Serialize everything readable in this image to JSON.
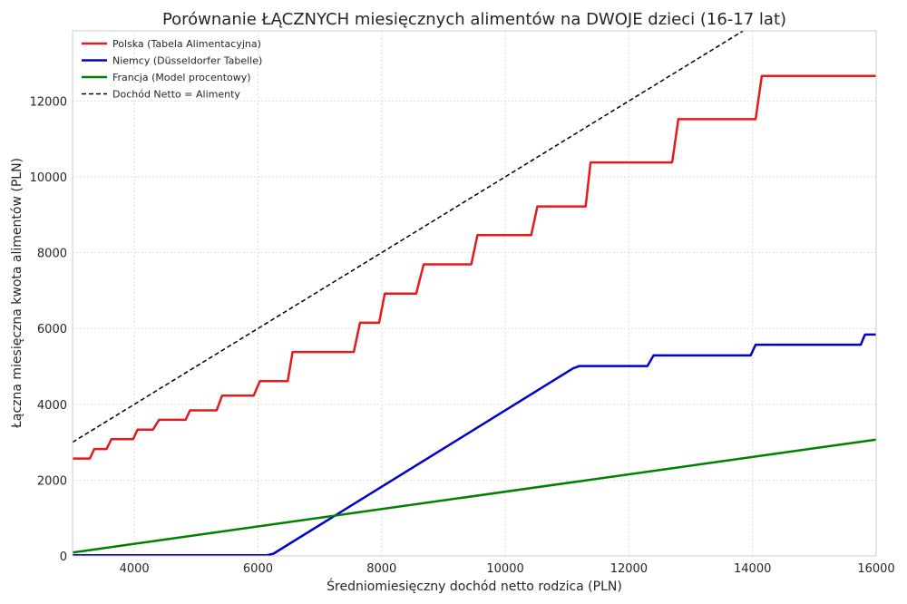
{
  "chart_data": {
    "type": "line",
    "title": "Porównanie ŁĄCZNYCH miesięcznych alimentów na DWOJE dzieci (16-17 lat)",
    "xlabel": "Średniomiesięczny dochód netto rodzica (PLN)",
    "ylabel": "Łączna miesięczna kwota alimentów (PLN)",
    "xlim": [
      3000,
      16000
    ],
    "ylim": [
      0,
      13850
    ],
    "xticks": [
      4000,
      6000,
      8000,
      10000,
      12000,
      14000,
      16000
    ],
    "yticks": [
      0,
      2000,
      4000,
      6000,
      8000,
      10000,
      12000
    ],
    "grid": true,
    "legend_position": "top-left",
    "series": [
      {
        "name": "Polska (Tabela Alimentacyjna)",
        "color": "#e41a1c",
        "style": "solid",
        "points": [
          [
            3000,
            2570
          ],
          [
            3280,
            2570
          ],
          [
            3350,
            2820
          ],
          [
            3550,
            2820
          ],
          [
            3630,
            3080
          ],
          [
            3980,
            3080
          ],
          [
            4050,
            3330
          ],
          [
            4300,
            3330
          ],
          [
            4400,
            3590
          ],
          [
            4830,
            3590
          ],
          [
            4900,
            3840
          ],
          [
            5330,
            3840
          ],
          [
            5420,
            4230
          ],
          [
            5930,
            4230
          ],
          [
            6030,
            4610
          ],
          [
            6480,
            4610
          ],
          [
            6560,
            5380
          ],
          [
            7550,
            5380
          ],
          [
            7650,
            6150
          ],
          [
            7960,
            6150
          ],
          [
            8050,
            6920
          ],
          [
            8560,
            6920
          ],
          [
            8680,
            7690
          ],
          [
            9450,
            7690
          ],
          [
            9550,
            8460
          ],
          [
            10420,
            8460
          ],
          [
            10520,
            9220
          ],
          [
            11300,
            9220
          ],
          [
            11380,
            10380
          ],
          [
            12700,
            10380
          ],
          [
            12800,
            11520
          ],
          [
            14050,
            11520
          ],
          [
            14150,
            12660
          ],
          [
            16000,
            12660
          ]
        ]
      },
      {
        "name": "Niemcy (Düsseldorfer Tabelle)",
        "color": "#0000cd",
        "style": "solid",
        "points": [
          [
            3000,
            20
          ],
          [
            6150,
            20
          ],
          [
            6250,
            60
          ],
          [
            11100,
            4950
          ],
          [
            11200,
            5010
          ],
          [
            12300,
            5010
          ],
          [
            12400,
            5290
          ],
          [
            13970,
            5290
          ],
          [
            14050,
            5570
          ],
          [
            15750,
            5570
          ],
          [
            15820,
            5840
          ],
          [
            16000,
            5840
          ]
        ]
      },
      {
        "name": "Francja (Model procentowy)",
        "color": "#008000",
        "style": "solid",
        "points": [
          [
            3000,
            90
          ],
          [
            16000,
            3070
          ]
        ]
      },
      {
        "name": "Dochód Netto = Alimenty",
        "color": "#000000",
        "style": "dashed",
        "points": [
          [
            3000,
            3000
          ],
          [
            16000,
            16000
          ]
        ]
      }
    ]
  }
}
